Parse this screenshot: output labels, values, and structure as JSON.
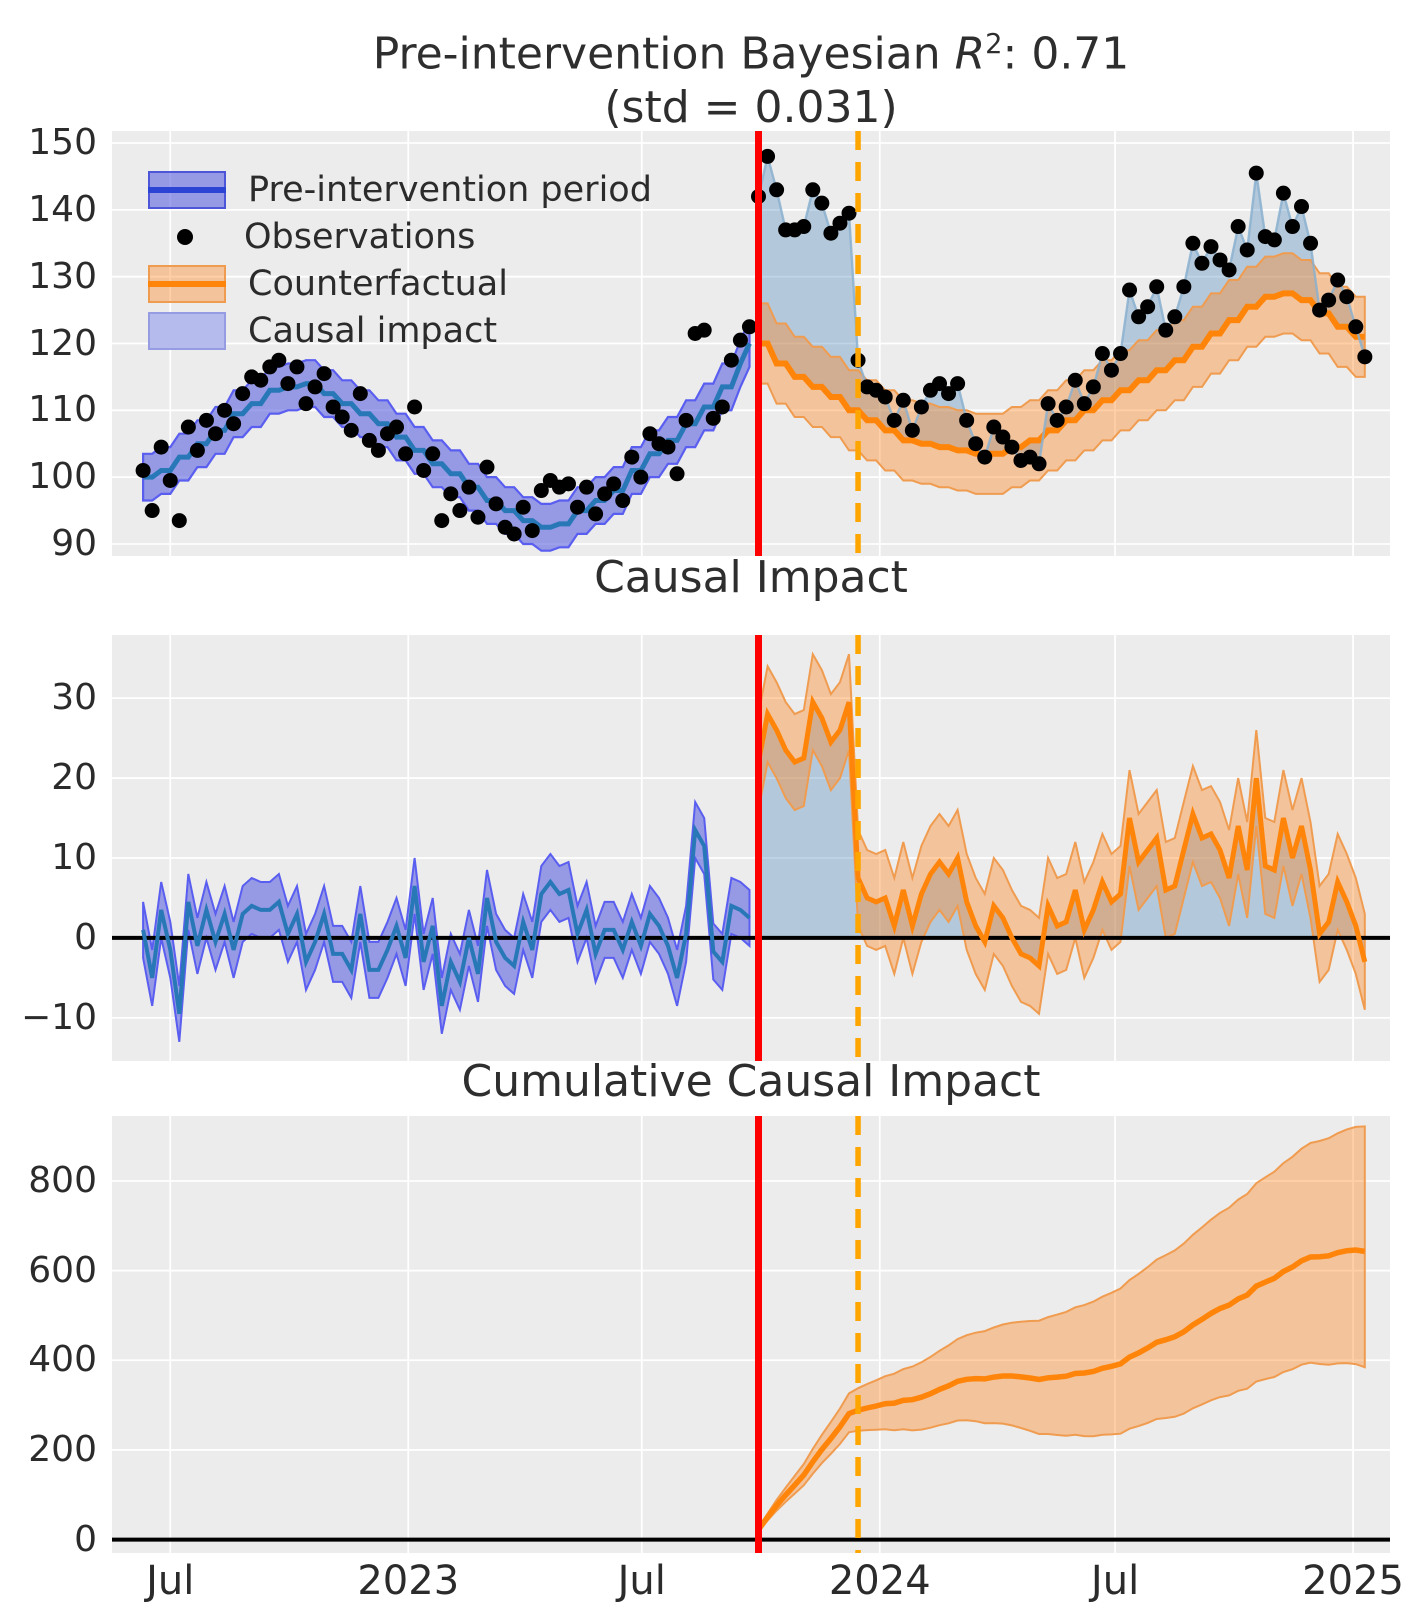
{
  "titles": {
    "line1_prefix": "Pre-intervention Bayesian ",
    "line1_var": "R",
    "line1_sup": "2",
    "line1_suffix": ": 0.71",
    "line2": "(std = 0.031)",
    "chart2": "Causal Impact",
    "chart3": "Cumulative Causal Impact"
  },
  "legend": {
    "items": [
      {
        "label": "Pre-intervention period",
        "swatch": "band-blue"
      },
      {
        "label": "Observations",
        "swatch": "dot"
      },
      {
        "label": "Counterfactual",
        "swatch": "band-orange"
      },
      {
        "label": "Causal impact",
        "swatch": "patch-lightblue"
      }
    ]
  },
  "colors": {
    "background": "#ececec",
    "grid": "#ffffff",
    "text": "#2b2b2b",
    "pre_band": "rgba(93,99,223,0.60)",
    "pre_band_edge": "#5a5ef0",
    "pre_median": "#2878b8",
    "observations": "#000000",
    "obs_line": "#8ab0cf",
    "impact_fill": "rgba(60,125,180,0.32)",
    "cf_band": "rgba(255,136,35,0.40)",
    "cf_band_edge": "#f09c50",
    "cf_median": "#ff850a",
    "intervention_line": "#ff0000",
    "reference_line": "#ffa500",
    "zero_line": "#000000"
  },
  "x_axis": {
    "ticks": [
      {
        "week": 3.0,
        "label": "Jul"
      },
      {
        "week": 29.3,
        "label": "2023"
      },
      {
        "week": 55.1,
        "label": "Jul"
      },
      {
        "week": 81.4,
        "label": "2024"
      },
      {
        "week": 107.4,
        "label": "Jul"
      },
      {
        "week": 133.7,
        "label": "2025"
      }
    ]
  },
  "intervention": {
    "week": 68,
    "style": "solid"
  },
  "reference": {
    "week": 79,
    "style": "dashed"
  },
  "chart_data": [
    {
      "id": "model-fit",
      "type": "line",
      "title": "Pre-intervention Bayesian R2: 0.71 (std = 0.031)",
      "ylim": [
        88.2,
        151.8
      ],
      "yticks": [
        {
          "v": 90,
          "label": "90"
        },
        {
          "v": 100,
          "label": "100"
        },
        {
          "v": 110,
          "label": "110"
        },
        {
          "v": 120,
          "label": "120"
        },
        {
          "v": 130,
          "label": "130"
        },
        {
          "v": 140,
          "label": "140"
        },
        {
          "v": 150,
          "label": "150"
        }
      ],
      "series": {
        "pre_start_week": 0,
        "observations_pre": [
          101,
          95,
          104.5,
          99.5,
          93.5,
          107.5,
          104,
          108.5,
          106.5,
          110,
          108,
          112.5,
          115,
          114.5,
          116.5,
          117.5,
          114,
          116.5,
          111,
          113.5,
          115.5,
          110.5,
          109,
          107,
          112.5,
          105.5,
          104,
          106.5,
          107.5,
          103.5,
          110.5,
          101,
          103.5,
          93.5,
          97.5,
          95,
          98.5,
          94,
          101.5,
          96,
          92.5,
          91.5,
          95.5,
          92,
          98,
          99.5,
          98.5,
          99,
          95.5,
          98.5,
          94.5,
          97.5,
          99,
          96.5,
          103,
          100,
          106.5,
          105,
          104.5,
          100.5,
          108.5,
          121.5,
          122,
          108.8,
          110.5,
          117.5,
          120.5,
          122.5
        ],
        "pre_mean": [
          100,
          100,
          101,
          101,
          103,
          103,
          105,
          105,
          107,
          107,
          109.5,
          109.5,
          111,
          111,
          113,
          113,
          113.5,
          113.5,
          114,
          114,
          112.5,
          112.5,
          111,
          111,
          109.5,
          109.5,
          108,
          108,
          106,
          106,
          104,
          104,
          102,
          102,
          100.5,
          100.5,
          98.5,
          98.5,
          96.5,
          96.5,
          95,
          95,
          93.5,
          93.5,
          92.5,
          92.5,
          93,
          93,
          95,
          95,
          96.5,
          96.5,
          98,
          98,
          101,
          101,
          103.5,
          103.5,
          105.5,
          105.5,
          108,
          108,
          110.5,
          110.5,
          113.5,
          113.5,
          117,
          120
        ],
        "pre_hdi_half": 3.5,
        "post_start_week": 68,
        "observations_post": [
          142,
          148,
          143,
          137,
          137,
          137.5,
          143,
          141,
          136.5,
          138,
          139.5,
          117.5,
          113.5,
          113,
          112,
          108.5,
          111.5,
          107,
          110.5,
          113,
          114,
          112.5,
          114,
          108.5,
          105,
          103,
          107.5,
          106,
          104.5,
          102.5,
          103,
          102,
          111,
          108.5,
          110.5,
          114.5,
          111,
          113.5,
          118.5,
          116,
          118.5,
          128,
          124,
          125.5,
          128.5,
          122,
          124,
          128.5,
          135,
          132,
          134.5,
          132.5,
          131,
          137.5,
          134,
          145.5,
          136,
          135.5,
          142.5,
          137.5,
          140.5,
          135,
          125,
          126.5,
          129.5,
          127,
          122.5,
          118
        ],
        "counterfactual_mean": [
          120,
          120,
          117,
          117,
          115,
          115,
          113.5,
          113.5,
          112,
          112,
          110,
          110,
          108.5,
          108.5,
          107,
          107,
          105.5,
          105.5,
          105,
          105,
          104.5,
          104.5,
          104,
          104,
          103.5,
          103.5,
          103.5,
          103.5,
          104.5,
          104.5,
          105.5,
          105.5,
          107,
          107,
          108.5,
          108.5,
          110,
          110,
          111.5,
          111.5,
          113,
          113,
          114.5,
          114.5,
          116,
          116,
          117.5,
          117.5,
          119.5,
          119.5,
          121.5,
          121.5,
          123.5,
          123.5,
          125.5,
          125.5,
          127,
          127,
          127.5,
          127.5,
          126.5,
          126.5,
          124.5,
          124.5,
          122.5,
          122.5,
          121,
          121
        ],
        "counterfactual_hdi_half": 6
      }
    },
    {
      "id": "causal-impact",
      "type": "line",
      "title": "Causal Impact",
      "ylim": [
        -15.4,
        37.9
      ],
      "yticks": [
        {
          "v": -10,
          "label": "−10"
        },
        {
          "v": 0,
          "label": "0"
        },
        {
          "v": 10,
          "label": "10"
        },
        {
          "v": 20,
          "label": "20"
        },
        {
          "v": 30,
          "label": "30"
        }
      ],
      "series": {
        "pre_start_week": 0,
        "impact_pre": [
          1,
          -5,
          3.5,
          -1.5,
          -9.5,
          4.5,
          -1,
          3.5,
          -0.5,
          3,
          -1.5,
          3,
          4,
          3.5,
          3.5,
          4.5,
          0.5,
          3,
          -3,
          -0.5,
          3,
          -2,
          -2,
          -4,
          3,
          -4,
          -4,
          -1.5,
          1.5,
          -2.5,
          6.5,
          -3,
          1.5,
          -8.5,
          -3,
          -5.5,
          0,
          -4.5,
          5,
          -0.5,
          -2.5,
          -3.5,
          2,
          -1.5,
          5.5,
          7,
          5.5,
          6,
          0.5,
          3.5,
          -2,
          1,
          1,
          -1.5,
          2,
          -1,
          3,
          1.5,
          -1,
          -5,
          0.5,
          13.5,
          11.5,
          -1.7,
          -3,
          4,
          3.5,
          2.5
        ],
        "pre_hdi_half": 3.5,
        "post_start_week": 68,
        "impact_post": [
          22,
          28,
          26,
          23.5,
          22,
          22.5,
          29.5,
          27.5,
          24.5,
          26,
          29.5,
          7.5,
          5,
          4.5,
          5,
          1.5,
          6,
          1.5,
          5.5,
          8,
          9.5,
          8,
          10,
          4.5,
          1.5,
          -0.5,
          4,
          2.5,
          0,
          -2,
          -2.5,
          -3.5,
          4,
          1.5,
          2,
          6,
          1,
          3.5,
          7,
          4.5,
          5.5,
          15,
          9.5,
          11,
          12.5,
          6,
          6.5,
          11,
          15.5,
          12.5,
          13,
          11,
          7.5,
          14,
          8.5,
          20,
          9,
          8.5,
          15,
          10,
          14,
          8.5,
          0.5,
          2,
          7,
          4.5,
          1.5,
          -3
        ],
        "post_hdi_half": 6
      }
    },
    {
      "id": "cumulative-causal-impact",
      "type": "line",
      "title": "Cumulative Causal Impact",
      "ylim": [
        -30,
        945
      ],
      "yticks": [
        {
          "v": 0,
          "label": "0"
        },
        {
          "v": 200,
          "label": "200"
        },
        {
          "v": 400,
          "label": "400"
        },
        {
          "v": 600,
          "label": "600"
        },
        {
          "v": 800,
          "label": "800"
        }
      ],
      "series": {
        "post_start_week": 68,
        "cumulative": [
          22,
          50,
          76,
          99.5,
          121.5,
          144,
          173.5,
          201,
          225.5,
          251.5,
          281,
          288.5,
          293.5,
          298,
          303,
          304.5,
          310.5,
          312,
          317.5,
          325.5,
          335,
          343,
          353,
          357.5,
          359,
          358.5,
          362.5,
          365,
          365,
          363,
          360.5,
          357,
          361,
          362.5,
          364.5,
          370.5,
          371.5,
          375,
          382,
          386.5,
          392,
          407,
          416.5,
          427.5,
          440,
          446,
          452.5,
          463.5,
          479,
          491.5,
          504.5,
          515.5,
          523,
          537,
          545.5,
          565.5,
          574.5,
          583,
          598,
          608,
          622,
          630.5,
          631,
          633,
          640,
          644.5,
          646,
          643
        ],
        "band_lo_rate": 3.8,
        "band_hi_rate": 4.1
      }
    }
  ]
}
